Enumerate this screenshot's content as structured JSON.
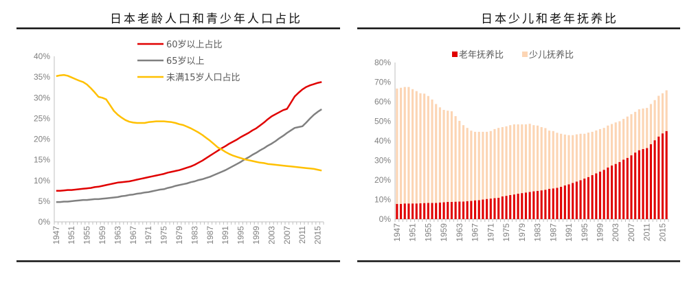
{
  "chart_data": [
    {
      "type": "line",
      "title": "日本老龄人口和青少年人口占比",
      "x": [
        1947,
        1948,
        1949,
        1950,
        1951,
        1952,
        1953,
        1954,
        1955,
        1956,
        1957,
        1958,
        1959,
        1960,
        1961,
        1962,
        1963,
        1964,
        1965,
        1966,
        1967,
        1968,
        1969,
        1970,
        1971,
        1972,
        1973,
        1974,
        1975,
        1976,
        1977,
        1978,
        1979,
        1980,
        1981,
        1982,
        1983,
        1984,
        1985,
        1986,
        1987,
        1988,
        1989,
        1990,
        1991,
        1992,
        1993,
        1994,
        1995,
        1996,
        1997,
        1998,
        1999,
        2000,
        2001,
        2002,
        2003,
        2004,
        2005,
        2006,
        2007,
        2008,
        2009,
        2010,
        2011,
        2012,
        2013,
        2014,
        2015,
        2016
      ],
      "xticks": [
        "1947",
        "1951",
        "1955",
        "1959",
        "1963",
        "1967",
        "1971",
        "1975",
        "1979",
        "1983",
        "1987",
        "1991",
        "1995",
        "1999",
        "2003",
        "2007",
        "2011",
        "2015"
      ],
      "yticks": [
        "0%",
        "5%",
        "10%",
        "15%",
        "20%",
        "25%",
        "30%",
        "35%",
        "40%"
      ],
      "ylim": [
        0,
        40
      ],
      "legend_position": "top",
      "grid": false,
      "series": [
        {
          "name": "60岁以上占比",
          "color": "#e00000",
          "values": [
            7.5,
            7.5,
            7.6,
            7.7,
            7.7,
            7.8,
            7.9,
            8.0,
            8.1,
            8.2,
            8.4,
            8.5,
            8.7,
            8.9,
            9.1,
            9.3,
            9.5,
            9.6,
            9.7,
            9.8,
            10.0,
            10.2,
            10.4,
            10.6,
            10.8,
            11.0,
            11.2,
            11.4,
            11.6,
            11.9,
            12.1,
            12.3,
            12.5,
            12.8,
            13.1,
            13.4,
            13.8,
            14.3,
            14.8,
            15.4,
            16.0,
            16.6,
            17.2,
            17.8,
            18.3,
            18.9,
            19.4,
            19.9,
            20.5,
            21.0,
            21.5,
            22.1,
            22.6,
            23.3,
            24.0,
            24.8,
            25.5,
            26.0,
            26.5,
            27.0,
            27.3,
            28.8,
            30.3,
            31.2,
            32.0,
            32.6,
            33.0,
            33.3,
            33.6,
            33.8
          ]
        },
        {
          "name": "65岁以上",
          "color": "#808080",
          "values": [
            4.8,
            4.8,
            4.9,
            4.9,
            5.0,
            5.1,
            5.2,
            5.3,
            5.3,
            5.4,
            5.5,
            5.5,
            5.6,
            5.7,
            5.8,
            5.9,
            6.0,
            6.2,
            6.3,
            6.5,
            6.6,
            6.8,
            6.9,
            7.1,
            7.2,
            7.4,
            7.6,
            7.8,
            7.9,
            8.2,
            8.4,
            8.7,
            8.9,
            9.1,
            9.3,
            9.6,
            9.8,
            10.1,
            10.3,
            10.6,
            10.9,
            11.3,
            11.7,
            12.1,
            12.5,
            13.0,
            13.5,
            14.0,
            14.5,
            15.1,
            15.6,
            16.2,
            16.7,
            17.3,
            17.8,
            18.4,
            18.9,
            19.5,
            20.2,
            20.8,
            21.5,
            22.1,
            22.7,
            22.9,
            23.1,
            24.0,
            25.0,
            25.9,
            26.6,
            27.2
          ]
        },
        {
          "name": "未满15岁人口占比",
          "color": "#ffc000",
          "values": [
            35.2,
            35.4,
            35.5,
            35.3,
            34.9,
            34.5,
            34.1,
            33.8,
            33.2,
            32.3,
            31.3,
            30.2,
            30.0,
            29.6,
            28.2,
            26.8,
            25.9,
            25.2,
            24.6,
            24.2,
            24.0,
            23.9,
            23.9,
            23.9,
            24.1,
            24.2,
            24.3,
            24.3,
            24.3,
            24.2,
            24.1,
            23.9,
            23.6,
            23.4,
            23.0,
            22.6,
            22.1,
            21.6,
            21.0,
            20.3,
            19.6,
            18.8,
            18.0,
            17.5,
            16.9,
            16.4,
            16.0,
            15.7,
            15.4,
            15.1,
            14.9,
            14.7,
            14.5,
            14.3,
            14.2,
            14.0,
            13.9,
            13.8,
            13.7,
            13.6,
            13.5,
            13.4,
            13.3,
            13.2,
            13.1,
            13.0,
            12.9,
            12.8,
            12.6,
            12.4
          ]
        }
      ]
    },
    {
      "type": "bar",
      "stacked": true,
      "title": "日本少儿和老年抚养比",
      "x": [
        1947,
        1948,
        1949,
        1950,
        1951,
        1952,
        1953,
        1954,
        1955,
        1956,
        1957,
        1958,
        1959,
        1960,
        1961,
        1962,
        1963,
        1964,
        1965,
        1966,
        1967,
        1968,
        1969,
        1970,
        1971,
        1972,
        1973,
        1974,
        1975,
        1976,
        1977,
        1978,
        1979,
        1980,
        1981,
        1982,
        1983,
        1984,
        1985,
        1986,
        1987,
        1988,
        1989,
        1990,
        1991,
        1992,
        1993,
        1994,
        1995,
        1996,
        1997,
        1998,
        1999,
        2000,
        2001,
        2002,
        2003,
        2004,
        2005,
        2006,
        2007,
        2008,
        2009,
        2010,
        2011,
        2012,
        2013,
        2014,
        2015,
        2016
      ],
      "xticks": [
        "1947",
        "1951",
        "1955",
        "1959",
        "1963",
        "1967",
        "1971",
        "1975",
        "1979",
        "1983",
        "1987",
        "1991",
        "1995",
        "1999",
        "2003",
        "2007",
        "2011",
        "2015"
      ],
      "yticks": [
        "0%",
        "10%",
        "20%",
        "30%",
        "40%",
        "50%",
        "60%",
        "70%",
        "80%"
      ],
      "ylim": [
        0,
        80
      ],
      "legend_position": "top",
      "grid": false,
      "series": [
        {
          "name": "老年抚养比",
          "color": "#e00000",
          "values": [
            7.8,
            7.8,
            8.0,
            8.0,
            8.0,
            8.0,
            8.1,
            8.2,
            8.3,
            8.3,
            8.3,
            8.5,
            8.6,
            8.8,
            8.8,
            8.9,
            9.0,
            9.0,
            9.2,
            9.3,
            9.6,
            9.7,
            10.0,
            10.3,
            10.5,
            10.7,
            10.9,
            11.6,
            11.9,
            12.3,
            12.6,
            13.0,
            13.3,
            13.6,
            13.9,
            14.2,
            14.4,
            14.7,
            15.0,
            15.5,
            15.7,
            16.0,
            16.5,
            17.2,
            17.8,
            18.5,
            19.2,
            19.9,
            20.7,
            21.5,
            22.5,
            23.4,
            24.3,
            25.2,
            26.4,
            27.4,
            28.2,
            29.2,
            30.4,
            31.3,
            32.6,
            34.0,
            35.2,
            35.8,
            36.3,
            38.3,
            40.3,
            42.2,
            43.8,
            45.0
          ]
        },
        {
          "name": "少儿抚养比",
          "color": "#fcd5b4",
          "values": [
            58.9,
            59.3,
            59.5,
            59.5,
            58.4,
            57.4,
            56.2,
            55.9,
            54.6,
            52.8,
            50.5,
            48.6,
            47.2,
            46.6,
            46.3,
            43.7,
            41.2,
            39.0,
            37.4,
            35.9,
            35.0,
            34.9,
            34.6,
            34.3,
            34.5,
            35.3,
            35.7,
            35.4,
            35.5,
            35.7,
            35.8,
            35.4,
            35.1,
            34.8,
            34.8,
            33.8,
            33.4,
            32.3,
            31.5,
            29.7,
            29.3,
            28.1,
            27.1,
            26.0,
            25.1,
            24.4,
            24.1,
            23.7,
            22.9,
            22.7,
            22.1,
            21.9,
            21.7,
            21.4,
            21.4,
            21.2,
            21.2,
            20.8,
            20.8,
            21.1,
            21.0,
            20.8,
            20.9,
            20.7,
            20.5,
            20.5,
            20.5,
            20.8,
            20.5,
            20.8
          ]
        }
      ]
    }
  ]
}
